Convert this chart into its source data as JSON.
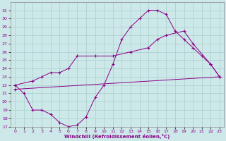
{
  "xlabel": "Windchill (Refroidissement éolien,°C)",
  "xlim": [
    -0.5,
    23.5
  ],
  "ylim": [
    17,
    32
  ],
  "xticks": [
    0,
    1,
    2,
    3,
    4,
    5,
    6,
    7,
    8,
    9,
    10,
    11,
    12,
    13,
    14,
    15,
    16,
    17,
    18,
    19,
    20,
    21,
    22,
    23
  ],
  "yticks": [
    17,
    18,
    19,
    20,
    21,
    22,
    23,
    24,
    25,
    26,
    27,
    28,
    29,
    30,
    31
  ],
  "bg_color": "#cde8e8",
  "line_color": "#880088",
  "grid_color": "#aacece",
  "line1_x": [
    0,
    1,
    2,
    3,
    4,
    5,
    6,
    7,
    8,
    9,
    10,
    11,
    12,
    13,
    14,
    15,
    16,
    17,
    18,
    19,
    20,
    21,
    22,
    23
  ],
  "line1_y": [
    22,
    21,
    19,
    19,
    18.5,
    17.5,
    17,
    17.2,
    18.2,
    20.5,
    22,
    24.5,
    27.5,
    29,
    30,
    31,
    31,
    30.5,
    28.5,
    27.5,
    26.5,
    25.5,
    24.5,
    23
  ],
  "line2_x": [
    0,
    2,
    3,
    4,
    5,
    6,
    7,
    9,
    11,
    13,
    15,
    16,
    17,
    19,
    20,
    22,
    23
  ],
  "line2_y": [
    22,
    22.5,
    23,
    23.5,
    23.5,
    24,
    25.5,
    25.5,
    25.5,
    26,
    26.5,
    27.5,
    28,
    28.5,
    27,
    24.5,
    23
  ],
  "line3_x": [
    0,
    23
  ],
  "line3_y": [
    21.5,
    23
  ]
}
